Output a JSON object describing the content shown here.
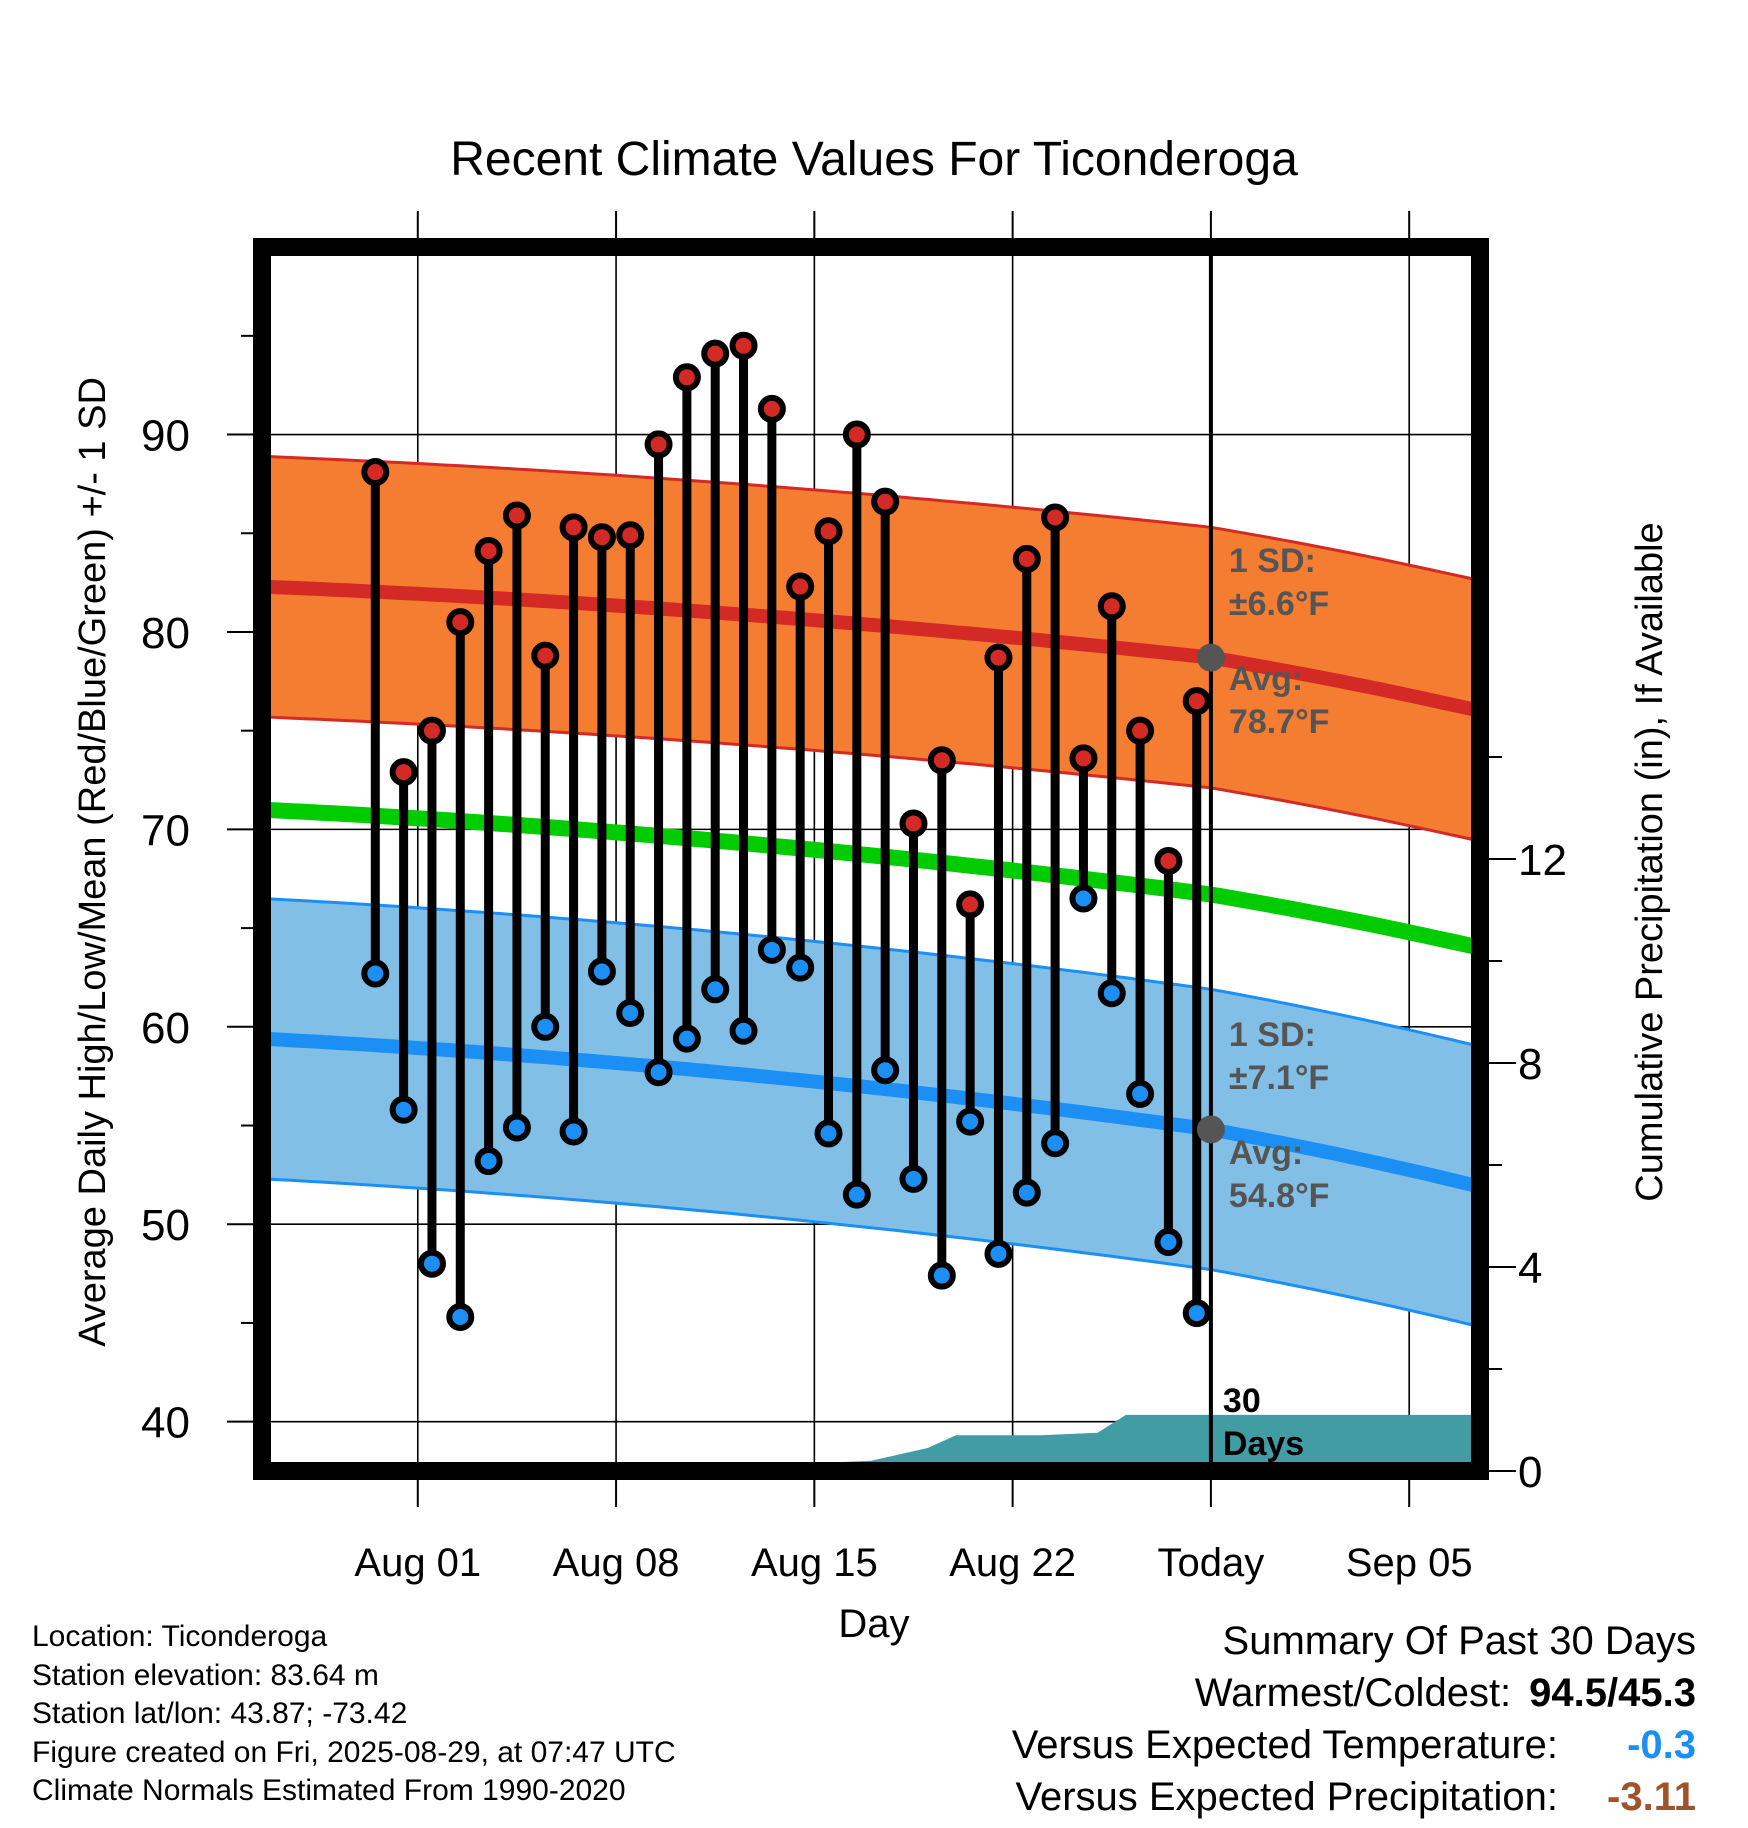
{
  "chart_data": {
    "type": "line",
    "title": "Recent Climate Values For Ticonderoga",
    "xlabel": "Day",
    "ylabel": "Average Daily High/Low/Mean (Red/Blue/Green) +/- 1 SD",
    "y2label": "Cumulative Precipitation (in), If Available",
    "ylim": [
      37.5,
      99.5
    ],
    "y_ticks": [
      "40",
      "50",
      "60",
      "70",
      "80",
      "90"
    ],
    "y2lim": [
      0,
      24
    ],
    "y2_ticks": [
      "0",
      "4",
      "8",
      "12"
    ],
    "x_range_days": [
      -33.5,
      9.5
    ],
    "x_ticks": [
      {
        "label": "Aug 01",
        "day": -28
      },
      {
        "label": "Aug 08",
        "day": -21
      },
      {
        "label": "Aug 15",
        "day": -14
      },
      {
        "label": "Aug 22",
        "day": -7
      },
      {
        "label": "Today",
        "day": 0
      },
      {
        "label": "Sep 05",
        "day": 7
      }
    ],
    "grid": true,
    "highs": [
      88.1,
      72.9,
      75.0,
      80.5,
      84.1,
      85.9,
      78.8,
      85.3,
      84.8,
      84.9,
      89.5,
      92.9,
      94.1,
      94.5,
      91.3,
      82.3,
      85.1,
      90.0,
      86.6,
      70.3,
      73.5,
      66.2,
      78.7,
      83.7,
      85.8,
      73.6,
      81.3,
      75.0,
      68.4,
      76.5
    ],
    "lows": [
      62.7,
      55.8,
      48.0,
      45.3,
      53.2,
      54.9,
      60.0,
      54.7,
      62.8,
      60.7,
      57.7,
      59.4,
      61.9,
      59.8,
      63.9,
      63.0,
      54.6,
      51.5,
      57.8,
      52.3,
      47.4,
      55.2,
      48.5,
      51.6,
      54.1,
      66.5,
      61.7,
      56.6,
      49.1,
      45.5
    ],
    "normal_high": {
      "start": 82.3,
      "today": 78.7,
      "end": 76.0,
      "sd": 6.6
    },
    "normal_low": {
      "start": 59.4,
      "today": 54.8,
      "end": 51.9,
      "sd": 7.1
    },
    "normal_mean": {
      "start": 71.0,
      "today": 66.7,
      "end": 64.0
    },
    "precip_cumulative": [
      {
        "day": -16,
        "value": 0.1
      },
      {
        "day": -14,
        "value": 0.15
      },
      {
        "day": -12,
        "value": 0.2
      },
      {
        "day": -10,
        "value": 0.45
      },
      {
        "day": -9,
        "value": 0.7
      },
      {
        "day": -6,
        "value": 0.7
      },
      {
        "day": -4,
        "value": 0.75
      },
      {
        "day": -3,
        "value": 1.1
      },
      {
        "day": 0,
        "value": 1.1
      },
      {
        "day": 9.5,
        "value": 1.1
      }
    ],
    "annotations": {
      "high_sd": [
        "1 SD:",
        "±6.6°F"
      ],
      "high_avg": [
        "Avg:",
        "78.7°F"
      ],
      "low_sd": [
        "1 SD:",
        "±7.1°F"
      ],
      "low_avg": [
        "Avg:",
        "54.8°F"
      ],
      "window": [
        "30",
        "Days"
      ]
    },
    "colors": {
      "high_band": "#f57d31",
      "high_line": "#d42a26",
      "low_band": "#82bfe6",
      "low_line": "#1c8ff5",
      "mean_line": "#00cc00",
      "precip": "#429ca3",
      "high_marker": "#d42a26",
      "low_marker": "#1c8ff5",
      "annotation": "#555555"
    }
  },
  "footer": {
    "location": "Location: Ticonderoga",
    "elevation": "Station elevation: 83.64 m",
    "latlon": "Station lat/lon: 43.87; -73.42",
    "created": "Figure created on Fri, 2025-08-29, at 07:47 UTC",
    "normals": "Climate Normals Estimated From 1990-2020"
  },
  "summary": {
    "title": "Summary Of Past 30 Days",
    "warm_label": "Warmest/Coldest:",
    "warm_value": "94.5/45.3",
    "temp_label": "Versus Expected Temperature:",
    "temp_value": "-0.3",
    "temp_color": "#1c8ff5",
    "precip_label": "Versus Expected Precipitation:",
    "precip_value": "-3.11",
    "precip_color": "#a0522d"
  }
}
